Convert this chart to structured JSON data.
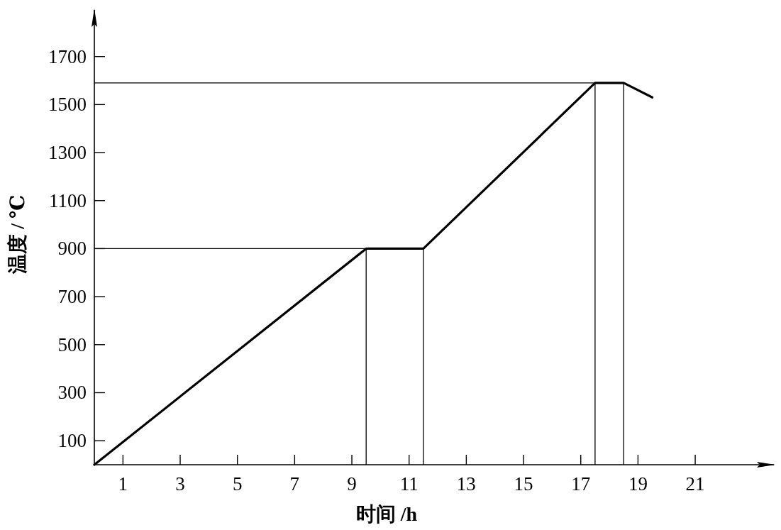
{
  "chart_data": {
    "type": "line",
    "xlabel": "时间 /h",
    "ylabel": "温度 / ℃",
    "x": [
      0,
      9.5,
      11.5,
      17.5,
      18.5,
      19.5
    ],
    "series": [
      {
        "color": "#000000",
        "values": [
          0,
          900,
          900,
          1590,
          1590,
          1530
        ]
      }
    ],
    "xlim": [
      0,
      23.8
    ],
    "ylim": [
      0,
      1900
    ],
    "xticks": [
      1,
      3,
      5,
      7,
      9,
      11,
      13,
      15,
      17,
      19,
      21
    ],
    "yticks": [
      100,
      300,
      500,
      700,
      900,
      1100,
      1300,
      1500,
      1700
    ],
    "ref_lines": [
      {
        "axis": "y",
        "value": 900
      },
      {
        "axis": "y",
        "value": 1590
      },
      {
        "axis": "x",
        "value": 9.5
      },
      {
        "axis": "x",
        "value": 11.5
      },
      {
        "axis": "x",
        "value": 17.5
      },
      {
        "axis": "x",
        "value": 18.5
      }
    ]
  }
}
